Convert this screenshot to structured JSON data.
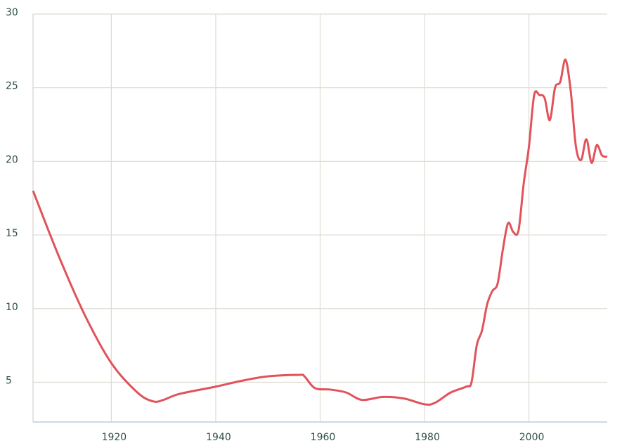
{
  "chart_data": {
    "type": "line",
    "x": [
      1905,
      1910,
      1915,
      1920,
      1925,
      1928,
      1930,
      1933,
      1940,
      1945,
      1950,
      1956,
      1957,
      1959,
      1962,
      1965,
      1968,
      1972,
      1976,
      1980,
      1982,
      1985,
      1988,
      1989,
      1990,
      1991,
      1992,
      1993,
      1994,
      1995,
      1996,
      1997,
      1998,
      1999,
      2000,
      2001,
      2002,
      2003,
      2004,
      2005,
      2006,
      2007,
      2008,
      2009,
      2010,
      2011,
      2012,
      2013,
      2014,
      2015
    ],
    "series": [
      {
        "color": "#e0535a",
        "values": [
          18,
          13.5,
          9.5,
          6.3,
          4.3,
          3.7,
          3.8,
          4.2,
          4.7,
          5.1,
          5.4,
          5.5,
          5.4,
          4.6,
          4.5,
          4.3,
          3.8,
          4.0,
          3.9,
          3.5,
          3.6,
          4.3,
          4.7,
          5.0,
          7.5,
          8.5,
          10.3,
          11.2,
          11.7,
          14,
          15.8,
          15.2,
          15.3,
          18.5,
          21,
          24.5,
          24.5,
          24.3,
          22.8,
          25,
          25.4,
          26.9,
          24.8,
          21,
          20.1,
          21.5,
          19.9,
          21.1,
          20.4,
          20.3
        ]
      }
    ],
    "xlim": [
      1905,
      2015
    ],
    "xticks": [
      1920,
      1940,
      1960,
      1980,
      2000
    ],
    "ylim": [
      2.3,
      30
    ],
    "yticks": [
      5,
      10,
      15,
      20,
      25,
      30
    ],
    "grid": true
  }
}
